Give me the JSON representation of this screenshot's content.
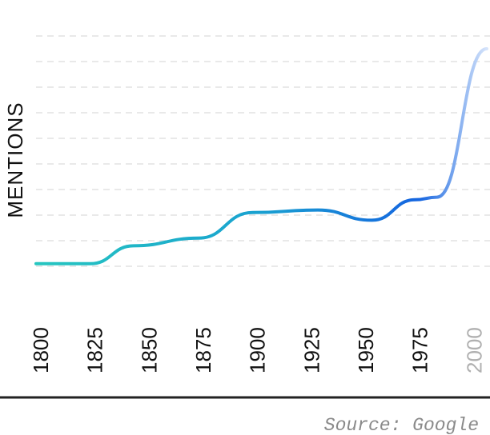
{
  "chart_data": {
    "type": "line",
    "title": "",
    "xlabel": "",
    "ylabel": "MENTIONS",
    "x_ticks": [
      "1800",
      "1825",
      "1850",
      "1875",
      "1900",
      "1925",
      "1950",
      "1975",
      "2000"
    ],
    "muted_ticks": [
      "2000"
    ],
    "xlim": [
      1800,
      2008
    ],
    "ylim": [
      0,
      10
    ],
    "grid": true,
    "series": [
      {
        "values": [
          {
            "x": 1800,
            "y": 1.1
          },
          {
            "x": 1825,
            "y": 1.1
          },
          {
            "x": 1845,
            "y": 1.8
          },
          {
            "x": 1875,
            "y": 2.1
          },
          {
            "x": 1900,
            "y": 3.1
          },
          {
            "x": 1930,
            "y": 3.2
          },
          {
            "x": 1955,
            "y": 2.8
          },
          {
            "x": 1975,
            "y": 3.6
          },
          {
            "x": 1985,
            "y": 3.7
          },
          {
            "x": 2008,
            "y": 9.5
          }
        ],
        "color_start": "#26c6c0",
        "color_mid": "#1565e0",
        "color_end": "#d6e4fb"
      }
    ],
    "source": "Source: Google"
  }
}
